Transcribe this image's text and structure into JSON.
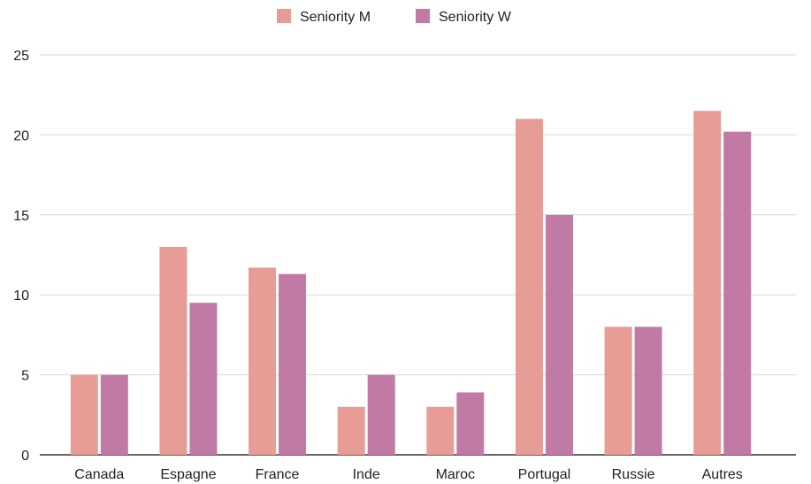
{
  "chart_data": {
    "type": "bar",
    "categories": [
      "Canada",
      "Espagne",
      "France",
      "Inde",
      "Maroc",
      "Portugal",
      "Russie",
      "Autres"
    ],
    "series": [
      {
        "name": "Seniority M",
        "color": "#E89C96",
        "values": [
          5,
          13,
          11.7,
          3,
          3,
          21,
          8,
          21.5
        ]
      },
      {
        "name": "Seniority W",
        "color": "#C07AA3",
        "values": [
          5,
          9.5,
          11.3,
          5,
          3.9,
          15,
          8,
          20.2
        ]
      }
    ],
    "yticks": [
      0,
      5,
      10,
      15,
      20,
      25
    ],
    "ylim": [
      0,
      25
    ],
    "grid": true,
    "legend_position": "top-center"
  }
}
